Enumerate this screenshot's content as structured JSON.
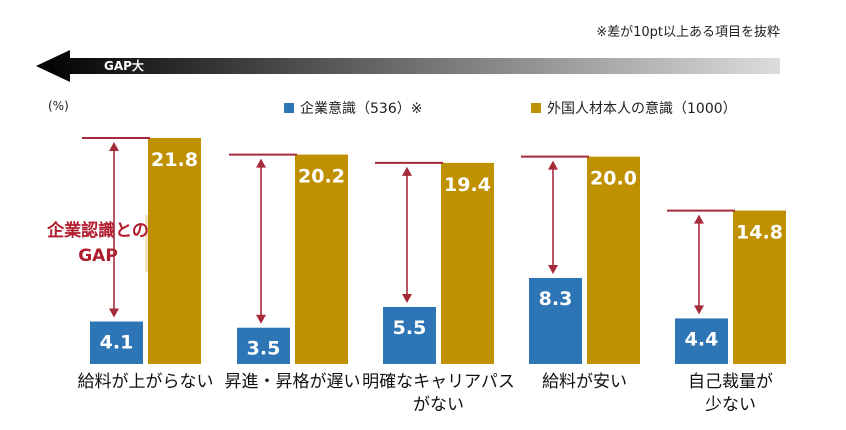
{
  "note": "※差が10pt以上ある項目を抜粋",
  "gap_arrow_label": "GAP大",
  "unit_label": "(%)",
  "annotation": [
    "企業認識との",
    "GAP"
  ],
  "chart_data": {
    "type": "bar",
    "categories": [
      [
        "給料が上がらない"
      ],
      [
        "昇進・昇格が遅い"
      ],
      [
        "明確なキャリアパス",
        "がない"
      ],
      [
        "給料が安い"
      ],
      [
        "自己裁量が",
        "少ない"
      ]
    ],
    "series": [
      {
        "name": "企業意識（536）※",
        "values": [
          4.1,
          3.5,
          5.5,
          8.3,
          4.4
        ]
      },
      {
        "name": "外国人材本人の意識（1000）",
        "values": [
          21.8,
          20.2,
          19.4,
          20.0,
          14.8
        ]
      }
    ],
    "ylabel": "(%)",
    "ylim": [
      0,
      24
    ],
    "legend": "top",
    "grid": false,
    "colors": {
      "company": "#2e75b6",
      "foreign": "#bf9000",
      "gap_marker": "#a52a3a",
      "annotation_fill": "#f3e3c3"
    }
  }
}
